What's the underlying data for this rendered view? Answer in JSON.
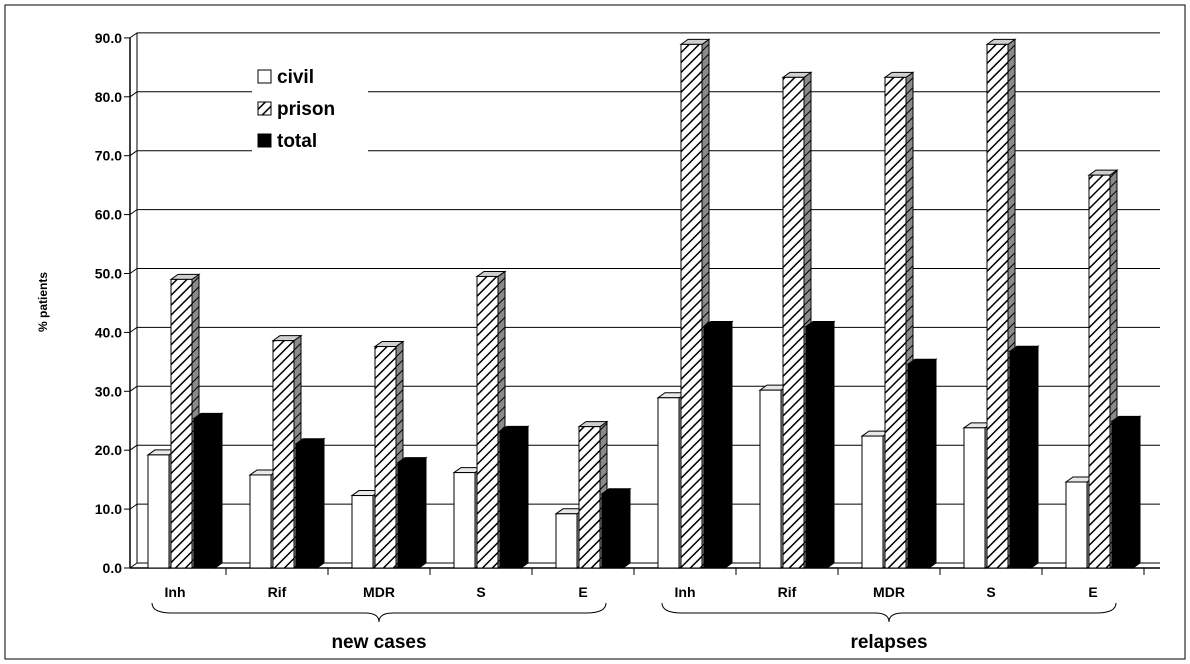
{
  "chart_data": {
    "type": "bar",
    "ylabel": "% patients",
    "ylim": [
      0,
      90
    ],
    "yticks": [
      "0.0",
      "10.0",
      "20.0",
      "30.0",
      "40.0",
      "50.0",
      "60.0",
      "70.0",
      "80.0",
      "90.0"
    ],
    "grid": true,
    "legend_position": "top-left",
    "groups": [
      {
        "label": "new cases",
        "categories": [
          "Inh",
          "Rif",
          "MDR",
          "S",
          "E"
        ]
      },
      {
        "label": "relapses",
        "categories": [
          "Inh",
          "Rif",
          "MDR",
          "S",
          "E"
        ]
      }
    ],
    "categories": [
      "Inh",
      "Rif",
      "MDR",
      "S",
      "E",
      "Inh",
      "Rif",
      "MDR",
      "S",
      "E"
    ],
    "series": [
      {
        "name": "civil",
        "fill": "white",
        "values": [
          19.2,
          15.8,
          12.3,
          16.2,
          9.2,
          28.9,
          30.2,
          22.4,
          23.8,
          14.6
        ]
      },
      {
        "name": "prison",
        "fill": "hatched",
        "values": [
          49.0,
          38.6,
          37.6,
          49.5,
          24.0,
          88.9,
          83.3,
          83.3,
          88.9,
          66.7
        ]
      },
      {
        "name": "total",
        "fill": "black",
        "values": [
          25.4,
          21.1,
          17.9,
          23.2,
          12.6,
          41.0,
          41.0,
          34.6,
          36.8,
          24.9
        ]
      }
    ]
  },
  "colors": {
    "background": "#ffffff",
    "bar_side": "#8a8a8a",
    "grid": "#000000"
  }
}
